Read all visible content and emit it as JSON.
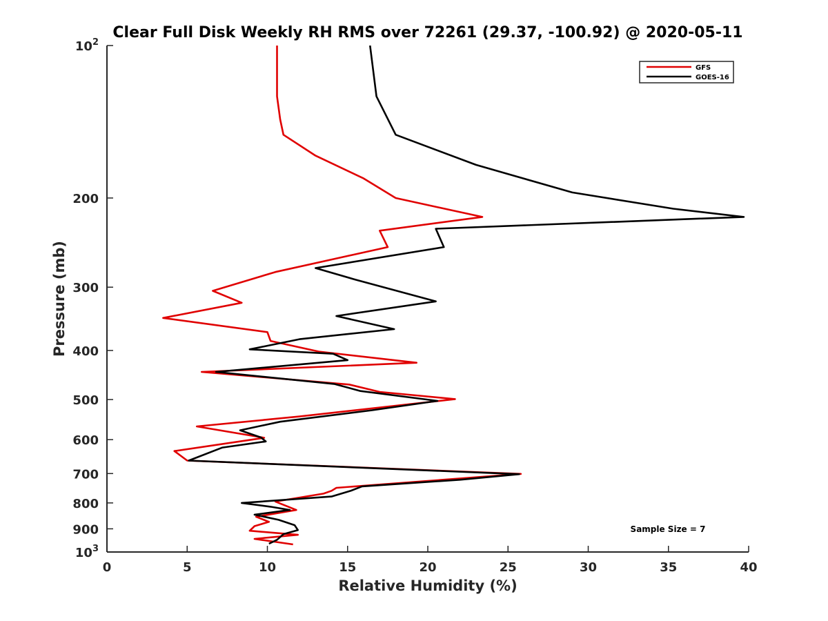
{
  "chart_data": {
    "type": "line",
    "title": "Clear Full Disk Weekly RH RMS over 72261 (29.37, -100.92) @ 2020-05-11",
    "xlabel": "Relative Humidity (%)",
    "ylabel": "Pressure (mb)",
    "xlim": [
      0,
      40
    ],
    "ylim": [
      100,
      1000
    ],
    "yscale": "log",
    "y_reversed": true,
    "grid": false,
    "legend_position": "top-right",
    "x_ticks": [
      0,
      5,
      10,
      15,
      20,
      25,
      30,
      35,
      40
    ],
    "x_tick_labels": [
      "0",
      "5",
      "10",
      "15",
      "20",
      "25",
      "30",
      "35",
      "40"
    ],
    "y_ticks": [
      100,
      200,
      300,
      400,
      500,
      600,
      700,
      800,
      900,
      1000
    ],
    "y_tick_labels": [
      {
        "base": "10",
        "exp": "2"
      },
      {
        "base": "200",
        "exp": ""
      },
      {
        "base": "300",
        "exp": ""
      },
      {
        "base": "400",
        "exp": ""
      },
      {
        "base": "500",
        "exp": ""
      },
      {
        "base": "600",
        "exp": ""
      },
      {
        "base": "700",
        "exp": ""
      },
      {
        "base": "800",
        "exp": ""
      },
      {
        "base": "900",
        "exp": ""
      },
      {
        "base": "10",
        "exp": "3"
      }
    ],
    "annotation": "Sample Size = 7",
    "series": [
      {
        "name": "GFS",
        "color": "#e00000",
        "points": [
          [
            10.6,
            100
          ],
          [
            10.6,
            126
          ],
          [
            10.8,
            140
          ],
          [
            11.0,
            150
          ],
          [
            13.0,
            165
          ],
          [
            16.0,
            183
          ],
          [
            18.0,
            200
          ],
          [
            23.4,
            218
          ],
          [
            17.0,
            232
          ],
          [
            17.5,
            250
          ],
          [
            10.5,
            280
          ],
          [
            6.6,
            305
          ],
          [
            8.4,
            322
          ],
          [
            3.5,
            345
          ],
          [
            10.0,
            368
          ],
          [
            10.2,
            383
          ],
          [
            13.2,
            402
          ],
          [
            19.3,
            423
          ],
          [
            5.9,
            441
          ],
          [
            15.1,
            467
          ],
          [
            17.0,
            483
          ],
          [
            21.7,
            499
          ],
          [
            12.0,
            540
          ],
          [
            5.6,
            565
          ],
          [
            9.8,
            595
          ],
          [
            4.2,
            632
          ],
          [
            5.0,
            660
          ],
          [
            25.8,
            701
          ],
          [
            14.3,
            747
          ],
          [
            14.0,
            757
          ],
          [
            13.5,
            767
          ],
          [
            10.5,
            795
          ],
          [
            11.8,
            826
          ],
          [
            9.3,
            852
          ],
          [
            10.1,
            872
          ],
          [
            9.2,
            889
          ],
          [
            8.9,
            908
          ],
          [
            11.9,
            925
          ],
          [
            9.2,
            942
          ],
          [
            11.6,
            966
          ]
        ]
      },
      {
        "name": "GOES-16",
        "color": "#000000",
        "points": [
          [
            16.4,
            100
          ],
          [
            16.8,
            126
          ],
          [
            18.0,
            150
          ],
          [
            23.0,
            172
          ],
          [
            29.0,
            195
          ],
          [
            35.3,
            210
          ],
          [
            39.7,
            218
          ],
          [
            20.5,
            230
          ],
          [
            21.0,
            250
          ],
          [
            13.0,
            275
          ],
          [
            15.5,
            290
          ],
          [
            20.5,
            320
          ],
          [
            14.3,
            342
          ],
          [
            17.9,
            363
          ],
          [
            12.0,
            380
          ],
          [
            8.9,
            398
          ],
          [
            14.1,
            406
          ],
          [
            15.0,
            418
          ],
          [
            6.8,
            441
          ],
          [
            14.2,
            466
          ],
          [
            15.8,
            481
          ],
          [
            20.6,
            503
          ],
          [
            16.5,
            525
          ],
          [
            10.8,
            553
          ],
          [
            8.3,
            575
          ],
          [
            9.6,
            594
          ],
          [
            9.9,
            605
          ],
          [
            7.2,
            622
          ],
          [
            5.1,
            660
          ],
          [
            25.7,
            702
          ],
          [
            22.0,
            720
          ],
          [
            15.9,
            742
          ],
          [
            15.2,
            757
          ],
          [
            14.0,
            777
          ],
          [
            8.4,
            800
          ],
          [
            10.2,
            814
          ],
          [
            11.4,
            826
          ],
          [
            9.2,
            844
          ],
          [
            10.7,
            864
          ],
          [
            11.7,
            885
          ],
          [
            11.9,
            905
          ],
          [
            11.0,
            922
          ],
          [
            10.6,
            946
          ],
          [
            10.1,
            963
          ]
        ]
      }
    ]
  }
}
